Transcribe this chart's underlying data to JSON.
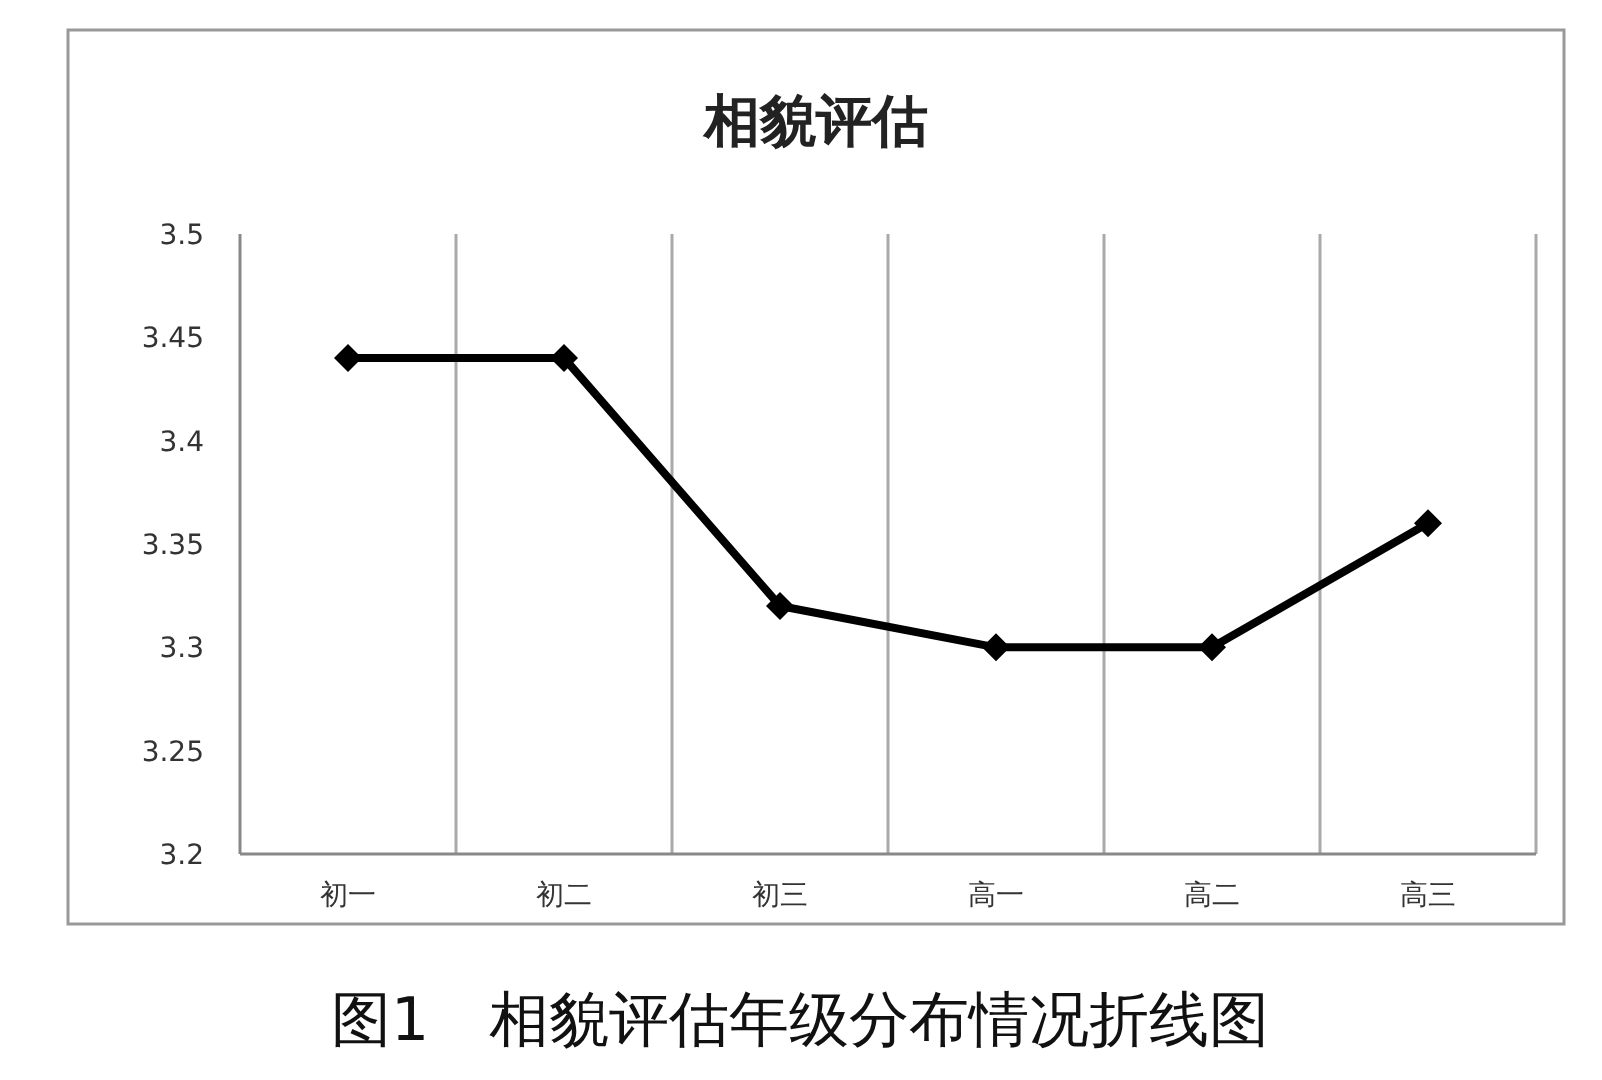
{
  "chart_data": {
    "type": "line",
    "title": "相貌评估",
    "categories": [
      "初一",
      "初二",
      "初三",
      "高一",
      "高二",
      "高三"
    ],
    "values": [
      3.44,
      3.44,
      3.32,
      3.3,
      3.3,
      3.36
    ],
    "color": "#000000",
    "ylim": [
      3.2,
      3.5
    ],
    "yticks": [
      3.2,
      3.25,
      3.3,
      3.35,
      3.4,
      3.45,
      3.5
    ],
    "grid": "x",
    "marker": "diamond",
    "line_style": "solid",
    "annotations": [
      "图1　相貌评估年级分布情况折线图"
    ]
  }
}
